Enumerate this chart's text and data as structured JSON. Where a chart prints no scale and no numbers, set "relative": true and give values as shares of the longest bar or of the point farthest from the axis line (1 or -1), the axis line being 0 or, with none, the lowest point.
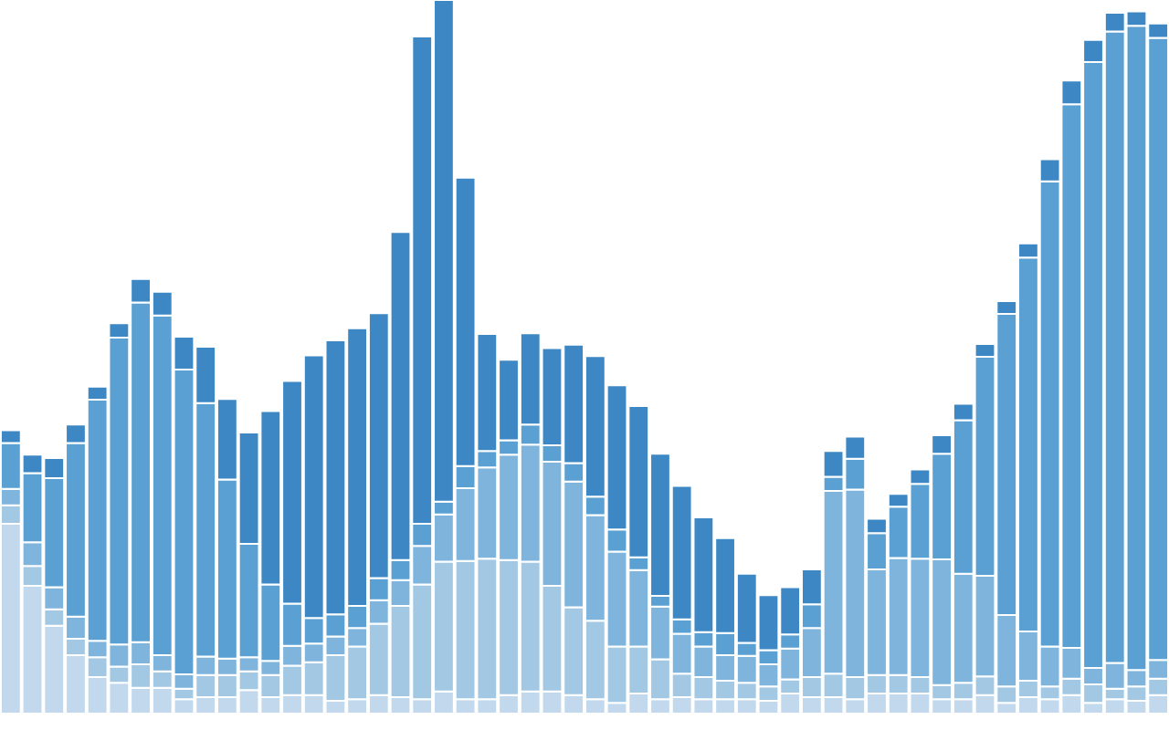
{
  "chart_data": {
    "type": "bar",
    "stacked": true,
    "relative": true,
    "categories": [
      null,
      null,
      null,
      null,
      null,
      null,
      null,
      null,
      null,
      null,
      null,
      null,
      null,
      null,
      null,
      null,
      null,
      null,
      null,
      null,
      null,
      null,
      null,
      null,
      null,
      null,
      null,
      null,
      null,
      null,
      null,
      null,
      null,
      null,
      null,
      null,
      null,
      null,
      null,
      null,
      null,
      null,
      null,
      null,
      null,
      null,
      null,
      null,
      null,
      null,
      null,
      null,
      null,
      null
    ],
    "series": [
      {
        "color": "#c2d9ed",
        "values": [
          0.266,
          0.179,
          0.123,
          0.082,
          0.051,
          0.043,
          0.036,
          0.036,
          0.02,
          0.023,
          0.023,
          0.033,
          0.023,
          0.026,
          0.026,
          0.018,
          0.02,
          0.026,
          0.023,
          0.02,
          0.031,
          0.02,
          0.02,
          0.026,
          0.031,
          0.031,
          0.026,
          0.02,
          0.015,
          0.028,
          0.02,
          0.023,
          0.02,
          0.02,
          0.02,
          0.018,
          0.028,
          0.023,
          0.023,
          0.02,
          0.028,
          0.028,
          0.028,
          0.02,
          0.02,
          0.026,
          0.015,
          0.023,
          0.02,
          0.026,
          0.015,
          0.02,
          0.018,
          0.026
        ]
      },
      {
        "color": "#a2c8e4",
        "values": [
          0.026,
          0.028,
          0.023,
          0.023,
          0.028,
          0.023,
          0.033,
          0.023,
          0.015,
          0.031,
          0.031,
          0.026,
          0.031,
          0.041,
          0.046,
          0.064,
          0.074,
          0.1,
          0.128,
          0.161,
          0.182,
          0.194,
          0.197,
          0.189,
          0.182,
          0.148,
          0.123,
          0.11,
          0.079,
          0.066,
          0.056,
          0.033,
          0.031,
          0.026,
          0.023,
          0.02,
          0.02,
          0.028,
          0.033,
          0.031,
          0.026,
          0.026,
          0.023,
          0.02,
          0.023,
          0.026,
          0.023,
          0.023,
          0.018,
          0.023,
          0.026,
          0.015,
          0.02,
          0.023
        ]
      },
      {
        "color": "#7fb5dc",
        "values": [
          0.023,
          0.033,
          0.031,
          0.031,
          0.023,
          0.031,
          0.031,
          0.023,
          0.02,
          0.026,
          0.023,
          0.02,
          0.02,
          0.028,
          0.026,
          0.026,
          0.026,
          0.033,
          0.036,
          0.054,
          0.066,
          0.102,
          0.128,
          0.148,
          0.164,
          0.174,
          0.176,
          0.148,
          0.133,
          0.107,
          0.074,
          0.056,
          0.043,
          0.036,
          0.038,
          0.031,
          0.043,
          0.069,
          0.256,
          0.263,
          0.148,
          0.164,
          0.166,
          0.176,
          0.153,
          0.141,
          0.1,
          0.069,
          0.056,
          0.043,
          0.023,
          0.036,
          0.023,
          0.026
        ]
      },
      {
        "color": "#5aa0d2",
        "values": [
          0.064,
          0.097,
          0.153,
          0.243,
          0.338,
          0.43,
          0.476,
          0.476,
          0.427,
          0.355,
          0.251,
          0.159,
          0.107,
          0.059,
          0.036,
          0.031,
          0.031,
          0.031,
          0.028,
          0.031,
          0.018,
          0.031,
          0.023,
          0.02,
          0.028,
          0.023,
          0.026,
          0.026,
          0.031,
          0.018,
          0.015,
          0.02,
          0.02,
          0.031,
          0.018,
          0.02,
          0.02,
          0.033,
          0.02,
          0.043,
          0.051,
          0.072,
          0.105,
          0.148,
          0.215,
          0.307,
          0.422,
          0.524,
          0.652,
          0.762,
          0.849,
          0.885,
          0.903,
          0.872
        ]
      },
      {
        "color": "#3d88c4",
        "values": [
          0.018,
          0.026,
          0.028,
          0.026,
          0.018,
          0.02,
          0.033,
          0.033,
          0.046,
          0.079,
          0.113,
          0.156,
          0.243,
          0.312,
          0.368,
          0.384,
          0.389,
          0.371,
          0.46,
          0.683,
          0.703,
          0.404,
          0.164,
          0.113,
          0.128,
          0.136,
          0.166,
          0.197,
          0.202,
          0.212,
          0.199,
          0.187,
          0.161,
          0.133,
          0.097,
          0.077,
          0.066,
          0.049,
          0.036,
          0.031,
          0.02,
          0.018,
          0.02,
          0.026,
          0.023,
          0.018,
          0.018,
          0.02,
          0.031,
          0.033,
          0.031,
          0.026,
          0.02,
          0.02
        ]
      }
    ]
  }
}
